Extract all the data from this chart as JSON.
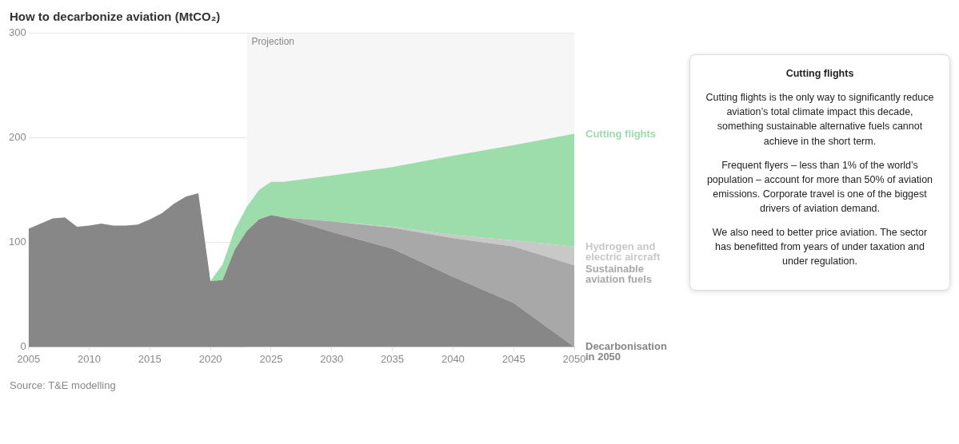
{
  "chart_data": {
    "type": "area",
    "title": "How to decarbonize aviation (MtCO₂)",
    "stacked": true,
    "x": [
      2005,
      2006,
      2007,
      2008,
      2009,
      2010,
      2011,
      2012,
      2013,
      2014,
      2015,
      2016,
      2017,
      2018,
      2019,
      2020,
      2021,
      2022,
      2023,
      2024,
      2025,
      2026,
      2030,
      2035,
      2040,
      2045,
      2050
    ],
    "series": [
      {
        "name": "Decarbonisation in 2050",
        "color": "#878787",
        "values": [
          113,
          118,
          123,
          124,
          115,
          116,
          118,
          116,
          116,
          117,
          122,
          128,
          137,
          144,
          147,
          63,
          64,
          93,
          111,
          122,
          126,
          124,
          110,
          94,
          67,
          42,
          0
        ]
      },
      {
        "name": "Sustainable aviation fuels",
        "color": "#a8a8a8",
        "values": [
          null,
          null,
          null,
          null,
          null,
          null,
          null,
          null,
          null,
          null,
          null,
          null,
          null,
          null,
          null,
          0,
          0,
          0,
          0,
          0,
          0,
          0,
          10,
          20,
          37,
          54,
          78
        ]
      },
      {
        "name": "Hydrogen and electric aircraft",
        "color": "#c8c8c8",
        "values": [
          null,
          null,
          null,
          null,
          null,
          null,
          null,
          null,
          null,
          null,
          null,
          null,
          null,
          null,
          null,
          0,
          0,
          0,
          0,
          0,
          0,
          0,
          0,
          1,
          3,
          6,
          18
        ]
      },
      {
        "name": "Cutting flights",
        "color": "#9ddcab",
        "values": [
          null,
          null,
          null,
          null,
          null,
          null,
          null,
          null,
          null,
          null,
          null,
          null,
          null,
          null,
          null,
          0,
          15,
          19,
          23,
          28,
          32,
          34,
          44,
          57,
          76,
          91,
          108
        ]
      }
    ],
    "xlim": [
      2005,
      2050
    ],
    "xticks": [
      2005,
      2010,
      2015,
      2020,
      2025,
      2030,
      2035,
      2040,
      2045,
      2050
    ],
    "ylim": [
      0,
      300
    ],
    "yticks": [
      0,
      100,
      200,
      300
    ],
    "grid": "y",
    "bands": [
      {
        "axis": "x",
        "from": 2023,
        "to": 2050,
        "label": "Projection",
        "color": "#f6f6f6"
      }
    ],
    "annotations": [
      "Cutting flights",
      "Cutting flights is the only way to significantly reduce aviation’s total climate impact this decade, something sustainable alternative fuels cannot achieve in the short term.",
      "Frequent flyers – less than 1% of the world’s population – account for more than 50% of aviation emissions. Corporate travel is one of the biggest drivers of aviation demand.",
      "We also need to better price aviation. The sector has benefitted from years of under taxation and under regulation.",
      "Source: T&E modelling"
    ]
  }
}
